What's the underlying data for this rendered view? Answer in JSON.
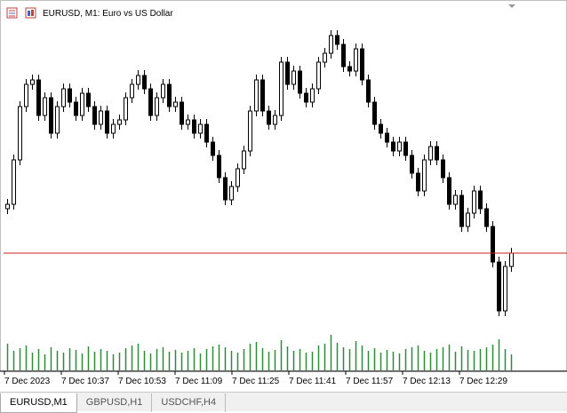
{
  "chart_data": {
    "type": "candlestick",
    "title": "EURUSD, M1:  Euro vs US Dollar",
    "time_labels": [
      "7 Dec 2023",
      "7 Dec 10:37",
      "7 Dec 10:53",
      "7 Dec 11:09",
      "7 Dec 11:25",
      "7 Dec 11:41",
      "7 Dec 11:57",
      "7 Dec 12:13",
      "7 Dec 12:29"
    ],
    "candles": [
      [
        165,
        176,
        159,
        170
      ],
      [
        170,
        226,
        164,
        220
      ],
      [
        220,
        286,
        214,
        280
      ],
      [
        280,
        311,
        274,
        305
      ],
      [
        305,
        316,
        299,
        310
      ],
      [
        310,
        316,
        264,
        270
      ],
      [
        270,
        296,
        264,
        290
      ],
      [
        290,
        296,
        244,
        250
      ],
      [
        250,
        286,
        244,
        280
      ],
      [
        280,
        306,
        274,
        300
      ],
      [
        300,
        306,
        279,
        285
      ],
      [
        285,
        291,
        264,
        270
      ],
      [
        270,
        301,
        264,
        295
      ],
      [
        295,
        301,
        274,
        280
      ],
      [
        280,
        286,
        254,
        260
      ],
      [
        260,
        281,
        254,
        275
      ],
      [
        275,
        281,
        244,
        250
      ],
      [
        250,
        266,
        244,
        260
      ],
      [
        260,
        271,
        254,
        265
      ],
      [
        265,
        296,
        259,
        290
      ],
      [
        290,
        311,
        284,
        305
      ],
      [
        305,
        321,
        299,
        315
      ],
      [
        315,
        321,
        294,
        300
      ],
      [
        300,
        306,
        264,
        270
      ],
      [
        270,
        296,
        264,
        290
      ],
      [
        290,
        311,
        284,
        305
      ],
      [
        305,
        311,
        274,
        280
      ],
      [
        280,
        291,
        274,
        285
      ],
      [
        285,
        291,
        254,
        260
      ],
      [
        260,
        271,
        254,
        265
      ],
      [
        265,
        271,
        244,
        250
      ],
      [
        250,
        266,
        244,
        260
      ],
      [
        260,
        266,
        234,
        240
      ],
      [
        240,
        246,
        219,
        225
      ],
      [
        225,
        231,
        194,
        200
      ],
      [
        200,
        206,
        169,
        175
      ],
      [
        175,
        196,
        169,
        190
      ],
      [
        190,
        216,
        184,
        210
      ],
      [
        210,
        236,
        204,
        230
      ],
      [
        230,
        281,
        224,
        275
      ],
      [
        275,
        316,
        269,
        310
      ],
      [
        310,
        316,
        269,
        275
      ],
      [
        275,
        281,
        254,
        260
      ],
      [
        260,
        276,
        254,
        270
      ],
      [
        270,
        336,
        264,
        330
      ],
      [
        330,
        336,
        299,
        305
      ],
      [
        305,
        326,
        299,
        320
      ],
      [
        320,
        326,
        289,
        295
      ],
      [
        295,
        301,
        279,
        285
      ],
      [
        285,
        306,
        279,
        300
      ],
      [
        300,
        336,
        294,
        330
      ],
      [
        330,
        346,
        324,
        340
      ],
      [
        340,
        366,
        334,
        360
      ],
      [
        360,
        366,
        344,
        350
      ],
      [
        350,
        356,
        319,
        325
      ],
      [
        325,
        331,
        314,
        320
      ],
      [
        320,
        351,
        314,
        345
      ],
      [
        345,
        351,
        304,
        310
      ],
      [
        310,
        316,
        279,
        285
      ],
      [
        285,
        291,
        254,
        260
      ],
      [
        260,
        266,
        244,
        250
      ],
      [
        250,
        256,
        234,
        240
      ],
      [
        240,
        246,
        224,
        230
      ],
      [
        230,
        246,
        224,
        240
      ],
      [
        240,
        246,
        219,
        225
      ],
      [
        225,
        231,
        199,
        205
      ],
      [
        205,
        211,
        179,
        185
      ],
      [
        185,
        226,
        179,
        220
      ],
      [
        220,
        241,
        214,
        235
      ],
      [
        235,
        241,
        214,
        220
      ],
      [
        220,
        226,
        194,
        200
      ],
      [
        200,
        206,
        164,
        170
      ],
      [
        170,
        186,
        164,
        180
      ],
      [
        180,
        186,
        139,
        145
      ],
      [
        145,
        166,
        139,
        160
      ],
      [
        160,
        191,
        154,
        185
      ],
      [
        185,
        191,
        159,
        165
      ],
      [
        165,
        171,
        139,
        145
      ],
      [
        145,
        151,
        99,
        105
      ],
      [
        105,
        111,
        44,
        50
      ],
      [
        50,
        106,
        44,
        100
      ],
      [
        100,
        121,
        94,
        115
      ]
    ],
    "volumes": [
      30,
      22,
      25,
      28,
      20,
      24,
      18,
      26,
      22,
      20,
      25,
      23,
      19,
      27,
      21,
      24,
      22,
      18,
      20,
      25,
      28,
      30,
      22,
      19,
      24,
      26,
      21,
      23,
      20,
      22,
      25,
      19,
      24,
      27,
      29,
      26,
      22,
      20,
      24,
      30,
      32,
      25,
      21,
      23,
      34,
      27,
      22,
      24,
      20,
      21,
      28,
      30,
      40,
      31,
      26,
      24,
      33,
      28,
      22,
      25,
      20,
      23,
      21,
      19,
      24,
      26,
      28,
      22,
      20,
      24,
      26,
      29,
      21,
      27,
      23,
      22,
      24,
      26,
      29,
      35,
      24,
      18
    ],
    "bull_color": "#ffffff",
    "bear_color": "#000000",
    "volume_color": "#2e8b3a",
    "price_line_color": "#cc2222"
  },
  "tabs": [
    "EURUSD,M1",
    "GBPUSD,H1",
    "USDCHF,H4"
  ]
}
